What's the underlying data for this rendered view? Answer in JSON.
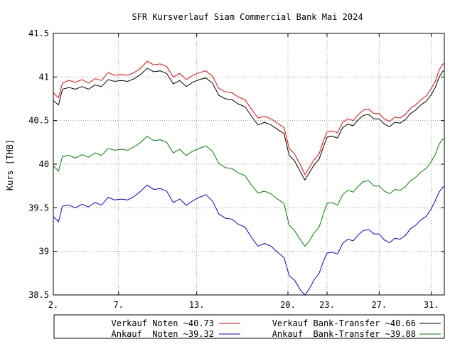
{
  "chart_data": {
    "type": "line",
    "title": "SFR Kursverlauf Siam Commercial Bank Mai 2024",
    "xlabel": "",
    "ylabel": "Kurs [THB]",
    "xlim": [
      2,
      32
    ],
    "ylim": [
      38.5,
      41.5
    ],
    "x_ticks": [
      {
        "x": 2,
        "label": "2."
      },
      {
        "x": 7,
        "label": "7."
      },
      {
        "x": 13,
        "label": "13."
      },
      {
        "x": 20,
        "label": "20."
      },
      {
        "x": 23,
        "label": "23."
      },
      {
        "x": 27,
        "label": "27."
      },
      {
        "x": 31,
        "label": "31."
      }
    ],
    "y_ticks": [
      {
        "y": 38.5,
        "label": "38.5"
      },
      {
        "y": 39,
        "label": "39"
      },
      {
        "y": 39.5,
        "label": "39.5"
      },
      {
        "y": 40,
        "label": "40"
      },
      {
        "y": 40.5,
        "label": "40.5"
      },
      {
        "y": 41,
        "label": "41"
      },
      {
        "y": 41.5,
        "label": "41.5"
      }
    ],
    "grid": true,
    "legend_position": "bottom",
    "series": [
      {
        "name": "Verkauf Noten ~40.73",
        "color": "#ff0000",
        "points": [
          [
            2,
            40.82
          ],
          [
            2.4,
            40.76
          ],
          [
            2.7,
            40.93
          ],
          [
            3.2,
            40.96
          ],
          [
            3.7,
            40.94
          ],
          [
            4.2,
            40.97
          ],
          [
            4.7,
            40.93
          ],
          [
            5.2,
            40.98
          ],
          [
            5.7,
            40.96
          ],
          [
            6.2,
            41.05
          ],
          [
            6.7,
            41.02
          ],
          [
            7.2,
            41.03
          ],
          [
            7.7,
            41.02
          ],
          [
            8.2,
            41.05
          ],
          [
            8.7,
            41.1
          ],
          [
            9.2,
            41.18
          ],
          [
            9.7,
            41.14
          ],
          [
            10.2,
            41.15
          ],
          [
            10.7,
            41.12
          ],
          [
            11.2,
            41.0
          ],
          [
            11.7,
            41.04
          ],
          [
            12.2,
            40.97
          ],
          [
            12.7,
            41.02
          ],
          [
            13.2,
            41.05
          ],
          [
            13.7,
            41.07
          ],
          [
            14.2,
            41.01
          ],
          [
            14.7,
            40.87
          ],
          [
            15.2,
            40.83
          ],
          [
            15.7,
            40.82
          ],
          [
            16.2,
            40.77
          ],
          [
            16.7,
            40.74
          ],
          [
            17.2,
            40.63
          ],
          [
            17.7,
            40.53
          ],
          [
            18.2,
            40.55
          ],
          [
            18.7,
            40.52
          ],
          [
            19.2,
            40.47
          ],
          [
            19.7,
            40.42
          ],
          [
            20.1,
            40.18
          ],
          [
            20.5,
            40.12
          ],
          [
            21.0,
            39.98
          ],
          [
            21.3,
            39.88
          ],
          [
            21.6,
            39.95
          ],
          [
            22.0,
            40.05
          ],
          [
            22.4,
            40.12
          ],
          [
            22.7,
            40.26
          ],
          [
            23.0,
            40.37
          ],
          [
            23.4,
            40.38
          ],
          [
            23.8,
            40.36
          ],
          [
            24.2,
            40.48
          ],
          [
            24.6,
            40.52
          ],
          [
            25.0,
            40.5
          ],
          [
            25.4,
            40.57
          ],
          [
            25.8,
            40.62
          ],
          [
            26.2,
            40.63
          ],
          [
            26.6,
            40.58
          ],
          [
            27.0,
            40.58
          ],
          [
            27.4,
            40.52
          ],
          [
            27.8,
            40.49
          ],
          [
            28.2,
            40.54
          ],
          [
            28.6,
            40.53
          ],
          [
            29.0,
            40.57
          ],
          [
            29.4,
            40.64
          ],
          [
            29.8,
            40.68
          ],
          [
            30.2,
            40.74
          ],
          [
            30.6,
            40.78
          ],
          [
            31.0,
            40.87
          ],
          [
            31.3,
            40.95
          ],
          [
            31.6,
            41.08
          ],
          [
            31.9,
            41.15
          ],
          [
            32,
            41.15
          ]
        ]
      },
      {
        "name": "Verkauf Bank-Transfer ~40.66",
        "color": "#000000",
        "points": [
          [
            2,
            40.73
          ],
          [
            2.4,
            40.68
          ],
          [
            2.7,
            40.86
          ],
          [
            3.2,
            40.88
          ],
          [
            3.7,
            40.86
          ],
          [
            4.2,
            40.89
          ],
          [
            4.7,
            40.86
          ],
          [
            5.2,
            40.91
          ],
          [
            5.7,
            40.89
          ],
          [
            6.2,
            40.97
          ],
          [
            6.7,
            40.95
          ],
          [
            7.2,
            40.96
          ],
          [
            7.7,
            40.95
          ],
          [
            8.2,
            40.98
          ],
          [
            8.7,
            41.03
          ],
          [
            9.2,
            41.1
          ],
          [
            9.7,
            41.06
          ],
          [
            10.2,
            41.07
          ],
          [
            10.7,
            41.04
          ],
          [
            11.2,
            40.92
          ],
          [
            11.7,
            40.96
          ],
          [
            12.2,
            40.89
          ],
          [
            12.7,
            40.94
          ],
          [
            13.2,
            40.97
          ],
          [
            13.7,
            40.99
          ],
          [
            14.2,
            40.93
          ],
          [
            14.7,
            40.79
          ],
          [
            15.2,
            40.75
          ],
          [
            15.7,
            40.74
          ],
          [
            16.2,
            40.69
          ],
          [
            16.7,
            40.66
          ],
          [
            17.2,
            40.55
          ],
          [
            17.7,
            40.45
          ],
          [
            18.2,
            40.48
          ],
          [
            18.7,
            40.45
          ],
          [
            19.2,
            40.4
          ],
          [
            19.7,
            40.35
          ],
          [
            20.1,
            40.1
          ],
          [
            20.5,
            40.04
          ],
          [
            21.0,
            39.9
          ],
          [
            21.3,
            39.82
          ],
          [
            21.6,
            39.89
          ],
          [
            22.0,
            39.99
          ],
          [
            22.4,
            40.06
          ],
          [
            22.7,
            40.19
          ],
          [
            23.0,
            40.31
          ],
          [
            23.4,
            40.32
          ],
          [
            23.8,
            40.3
          ],
          [
            24.2,
            40.42
          ],
          [
            24.6,
            40.46
          ],
          [
            25.0,
            40.44
          ],
          [
            25.4,
            40.51
          ],
          [
            25.8,
            40.56
          ],
          [
            26.2,
            40.57
          ],
          [
            26.6,
            40.52
          ],
          [
            27.0,
            40.52
          ],
          [
            27.4,
            40.46
          ],
          [
            27.8,
            40.43
          ],
          [
            28.2,
            40.48
          ],
          [
            28.6,
            40.47
          ],
          [
            29.0,
            40.51
          ],
          [
            29.4,
            40.58
          ],
          [
            29.8,
            40.62
          ],
          [
            30.2,
            40.68
          ],
          [
            30.6,
            40.72
          ],
          [
            31.0,
            40.8
          ],
          [
            31.3,
            40.88
          ],
          [
            31.6,
            41.0
          ],
          [
            31.9,
            41.07
          ],
          [
            32,
            41.07
          ]
        ]
      },
      {
        "name": "Ankauf Bank-Transfer ~39.88",
        "color": "#008000",
        "points": [
          [
            2,
            39.98
          ],
          [
            2.4,
            39.92
          ],
          [
            2.7,
            40.09
          ],
          [
            3.2,
            40.1
          ],
          [
            3.7,
            40.07
          ],
          [
            4.2,
            40.11
          ],
          [
            4.7,
            40.08
          ],
          [
            5.2,
            40.13
          ],
          [
            5.7,
            40.1
          ],
          [
            6.2,
            40.18
          ],
          [
            6.7,
            40.16
          ],
          [
            7.2,
            40.17
          ],
          [
            7.7,
            40.16
          ],
          [
            8.2,
            40.2
          ],
          [
            8.7,
            40.25
          ],
          [
            9.2,
            40.32
          ],
          [
            9.7,
            40.27
          ],
          [
            10.2,
            40.28
          ],
          [
            10.7,
            40.25
          ],
          [
            11.2,
            40.13
          ],
          [
            11.7,
            40.17
          ],
          [
            12.2,
            40.1
          ],
          [
            12.7,
            40.15
          ],
          [
            13.2,
            40.18
          ],
          [
            13.7,
            40.21
          ],
          [
            14.2,
            40.15
          ],
          [
            14.7,
            40.01
          ],
          [
            15.2,
            39.96
          ],
          [
            15.7,
            39.95
          ],
          [
            16.2,
            39.9
          ],
          [
            16.7,
            39.87
          ],
          [
            17.2,
            39.76
          ],
          [
            17.7,
            39.67
          ],
          [
            18.2,
            39.69
          ],
          [
            18.7,
            39.66
          ],
          [
            19.2,
            39.6
          ],
          [
            19.7,
            39.55
          ],
          [
            20.1,
            39.3
          ],
          [
            20.5,
            39.24
          ],
          [
            21.0,
            39.12
          ],
          [
            21.3,
            39.06
          ],
          [
            21.6,
            39.11
          ],
          [
            22.0,
            39.21
          ],
          [
            22.4,
            39.28
          ],
          [
            22.7,
            39.42
          ],
          [
            23.0,
            39.55
          ],
          [
            23.4,
            39.56
          ],
          [
            23.8,
            39.53
          ],
          [
            24.2,
            39.65
          ],
          [
            24.6,
            39.7
          ],
          [
            25.0,
            39.68
          ],
          [
            25.4,
            39.75
          ],
          [
            25.8,
            39.8
          ],
          [
            26.2,
            39.81
          ],
          [
            26.6,
            39.75
          ],
          [
            27.0,
            39.75
          ],
          [
            27.4,
            39.69
          ],
          [
            27.8,
            39.66
          ],
          [
            28.2,
            39.71
          ],
          [
            28.6,
            39.7
          ],
          [
            29.0,
            39.74
          ],
          [
            29.4,
            39.81
          ],
          [
            29.8,
            39.85
          ],
          [
            30.2,
            39.91
          ],
          [
            30.6,
            39.95
          ],
          [
            31.0,
            40.03
          ],
          [
            31.3,
            40.11
          ],
          [
            31.6,
            40.23
          ],
          [
            31.9,
            40.29
          ],
          [
            32,
            40.29
          ]
        ]
      },
      {
        "name": "Ankauf  Noten ~39.32",
        "color": "#0000ff",
        "points": [
          [
            2,
            39.4
          ],
          [
            2.4,
            39.34
          ],
          [
            2.7,
            39.52
          ],
          [
            3.2,
            39.53
          ],
          [
            3.7,
            39.5
          ],
          [
            4.2,
            39.54
          ],
          [
            4.7,
            39.51
          ],
          [
            5.2,
            39.56
          ],
          [
            5.7,
            39.53
          ],
          [
            6.2,
            39.62
          ],
          [
            6.7,
            39.59
          ],
          [
            7.2,
            39.6
          ],
          [
            7.7,
            39.59
          ],
          [
            8.2,
            39.63
          ],
          [
            8.7,
            39.69
          ],
          [
            9.2,
            39.76
          ],
          [
            9.7,
            39.71
          ],
          [
            10.2,
            39.72
          ],
          [
            10.7,
            39.69
          ],
          [
            11.2,
            39.56
          ],
          [
            11.7,
            39.6
          ],
          [
            12.2,
            39.53
          ],
          [
            12.7,
            39.58
          ],
          [
            13.2,
            39.62
          ],
          [
            13.7,
            39.65
          ],
          [
            14.2,
            39.58
          ],
          [
            14.7,
            39.43
          ],
          [
            15.2,
            39.38
          ],
          [
            15.7,
            39.37
          ],
          [
            16.2,
            39.31
          ],
          [
            16.7,
            39.28
          ],
          [
            17.2,
            39.16
          ],
          [
            17.7,
            39.06
          ],
          [
            18.2,
            39.09
          ],
          [
            18.7,
            39.06
          ],
          [
            19.2,
            38.99
          ],
          [
            19.7,
            38.93
          ],
          [
            20.1,
            38.72
          ],
          [
            20.5,
            38.67
          ],
          [
            21.0,
            38.55
          ],
          [
            21.3,
            38.5
          ],
          [
            21.6,
            38.56
          ],
          [
            22.0,
            38.67
          ],
          [
            22.4,
            38.75
          ],
          [
            22.7,
            38.88
          ],
          [
            23.0,
            38.98
          ],
          [
            23.4,
            38.99
          ],
          [
            23.8,
            38.97
          ],
          [
            24.2,
            39.09
          ],
          [
            24.6,
            39.14
          ],
          [
            25.0,
            39.12
          ],
          [
            25.4,
            39.19
          ],
          [
            25.8,
            39.24
          ],
          [
            26.2,
            39.25
          ],
          [
            26.6,
            39.2
          ],
          [
            27.0,
            39.2
          ],
          [
            27.4,
            39.13
          ],
          [
            27.8,
            39.1
          ],
          [
            28.2,
            39.15
          ],
          [
            28.6,
            39.14
          ],
          [
            29.0,
            39.18
          ],
          [
            29.4,
            39.26
          ],
          [
            29.8,
            39.3
          ],
          [
            30.2,
            39.36
          ],
          [
            30.6,
            39.4
          ],
          [
            31.0,
            39.49
          ],
          [
            31.3,
            39.58
          ],
          [
            31.6,
            39.68
          ],
          [
            31.9,
            39.74
          ],
          [
            32,
            39.74
          ]
        ]
      }
    ],
    "legend": {
      "rows": [
        [
          {
            "label": "Verkauf Noten ~40.73",
            "color": "#ff0000"
          },
          {
            "label": "Verkauf Bank-Transfer ~40.66",
            "color": "#000000"
          }
        ],
        [
          {
            "label": "Ankauf  Noten ~39.32",
            "color": "#0000ff"
          },
          {
            "label": "Ankauf  Bank-Transfer ~39.88",
            "color": "#008000"
          }
        ]
      ]
    }
  }
}
